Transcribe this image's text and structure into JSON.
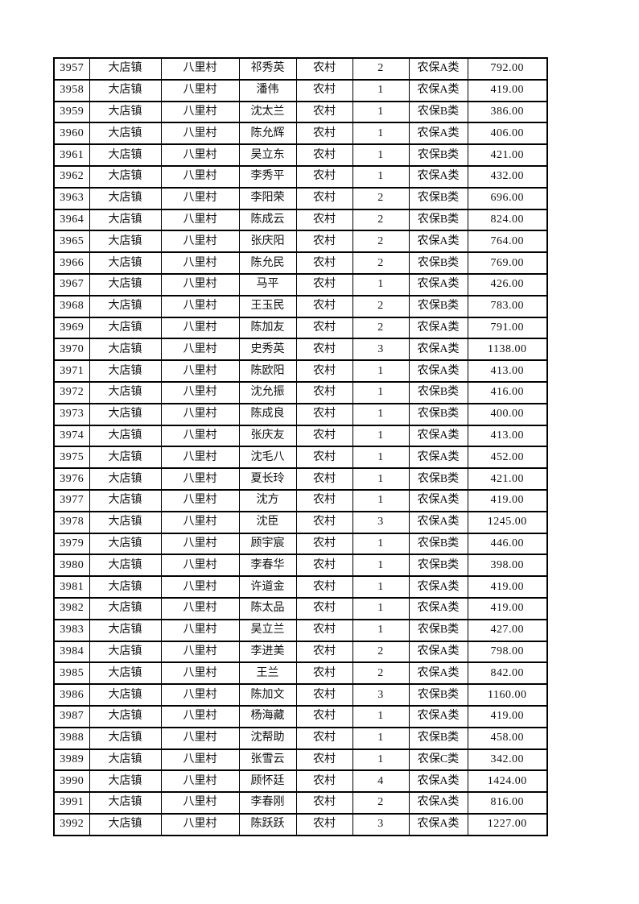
{
  "page": {
    "background": "#ffffff",
    "text_color": "#111111",
    "border_color": "#000000"
  },
  "table": {
    "column_keys": [
      "seq",
      "town",
      "village",
      "name",
      "category",
      "persons",
      "insurance-type",
      "amount"
    ],
    "rows": [
      [
        "3957",
        "大店镇",
        "八里村",
        "祁秀英",
        "农村",
        "2",
        "农保A类",
        "792.00"
      ],
      [
        "3958",
        "大店镇",
        "八里村",
        "潘伟",
        "农村",
        "1",
        "农保A类",
        "419.00"
      ],
      [
        "3959",
        "大店镇",
        "八里村",
        "沈太兰",
        "农村",
        "1",
        "农保B类",
        "386.00"
      ],
      [
        "3960",
        "大店镇",
        "八里村",
        "陈允辉",
        "农村",
        "1",
        "农保A类",
        "406.00"
      ],
      [
        "3961",
        "大店镇",
        "八里村",
        "吴立东",
        "农村",
        "1",
        "农保B类",
        "421.00"
      ],
      [
        "3962",
        "大店镇",
        "八里村",
        "李秀平",
        "农村",
        "1",
        "农保A类",
        "432.00"
      ],
      [
        "3963",
        "大店镇",
        "八里村",
        "李阳荣",
        "农村",
        "2",
        "农保B类",
        "696.00"
      ],
      [
        "3964",
        "大店镇",
        "八里村",
        "陈成云",
        "农村",
        "2",
        "农保B类",
        "824.00"
      ],
      [
        "3965",
        "大店镇",
        "八里村",
        "张庆阳",
        "农村",
        "2",
        "农保A类",
        "764.00"
      ],
      [
        "3966",
        "大店镇",
        "八里村",
        "陈允民",
        "农村",
        "2",
        "农保B类",
        "769.00"
      ],
      [
        "3967",
        "大店镇",
        "八里村",
        "马平",
        "农村",
        "1",
        "农保A类",
        "426.00"
      ],
      [
        "3968",
        "大店镇",
        "八里村",
        "王玉民",
        "农村",
        "2",
        "农保B类",
        "783.00"
      ],
      [
        "3969",
        "大店镇",
        "八里村",
        "陈加友",
        "农村",
        "2",
        "农保A类",
        "791.00"
      ],
      [
        "3970",
        "大店镇",
        "八里村",
        "史秀英",
        "农村",
        "3",
        "农保A类",
        "1138.00"
      ],
      [
        "3971",
        "大店镇",
        "八里村",
        "陈欧阳",
        "农村",
        "1",
        "农保A类",
        "413.00"
      ],
      [
        "3972",
        "大店镇",
        "八里村",
        "沈允振",
        "农村",
        "1",
        "农保B类",
        "416.00"
      ],
      [
        "3973",
        "大店镇",
        "八里村",
        "陈成良",
        "农村",
        "1",
        "农保B类",
        "400.00"
      ],
      [
        "3974",
        "大店镇",
        "八里村",
        "张庆友",
        "农村",
        "1",
        "农保A类",
        "413.00"
      ],
      [
        "3975",
        "大店镇",
        "八里村",
        "沈毛八",
        "农村",
        "1",
        "农保A类",
        "452.00"
      ],
      [
        "3976",
        "大店镇",
        "八里村",
        "夏长玲",
        "农村",
        "1",
        "农保B类",
        "421.00"
      ],
      [
        "3977",
        "大店镇",
        "八里村",
        "沈方",
        "农村",
        "1",
        "农保A类",
        "419.00"
      ],
      [
        "3978",
        "大店镇",
        "八里村",
        "沈臣",
        "农村",
        "3",
        "农保A类",
        "1245.00"
      ],
      [
        "3979",
        "大店镇",
        "八里村",
        "顾宇宸",
        "农村",
        "1",
        "农保B类",
        "446.00"
      ],
      [
        "3980",
        "大店镇",
        "八里村",
        "李春华",
        "农村",
        "1",
        "农保B类",
        "398.00"
      ],
      [
        "3981",
        "大店镇",
        "八里村",
        "许道金",
        "农村",
        "1",
        "农保A类",
        "419.00"
      ],
      [
        "3982",
        "大店镇",
        "八里村",
        "陈太品",
        "农村",
        "1",
        "农保A类",
        "419.00"
      ],
      [
        "3983",
        "大店镇",
        "八里村",
        "吴立兰",
        "农村",
        "1",
        "农保B类",
        "427.00"
      ],
      [
        "3984",
        "大店镇",
        "八里村",
        "李进美",
        "农村",
        "2",
        "农保A类",
        "798.00"
      ],
      [
        "3985",
        "大店镇",
        "八里村",
        "王兰",
        "农村",
        "2",
        "农保A类",
        "842.00"
      ],
      [
        "3986",
        "大店镇",
        "八里村",
        "陈加文",
        "农村",
        "3",
        "农保B类",
        "1160.00"
      ],
      [
        "3987",
        "大店镇",
        "八里村",
        "杨海藏",
        "农村",
        "1",
        "农保A类",
        "419.00"
      ],
      [
        "3988",
        "大店镇",
        "八里村",
        "沈帮助",
        "农村",
        "1",
        "农保B类",
        "458.00"
      ],
      [
        "3989",
        "大店镇",
        "八里村",
        "张雪云",
        "农村",
        "1",
        "农保C类",
        "342.00"
      ],
      [
        "3990",
        "大店镇",
        "八里村",
        "顾怀廷",
        "农村",
        "4",
        "农保A类",
        "1424.00"
      ],
      [
        "3991",
        "大店镇",
        "八里村",
        "李春刚",
        "农村",
        "2",
        "农保A类",
        "816.00"
      ],
      [
        "3992",
        "大店镇",
        "八里村",
        "陈跃跃",
        "农村",
        "3",
        "农保A类",
        "1227.00"
      ]
    ]
  }
}
